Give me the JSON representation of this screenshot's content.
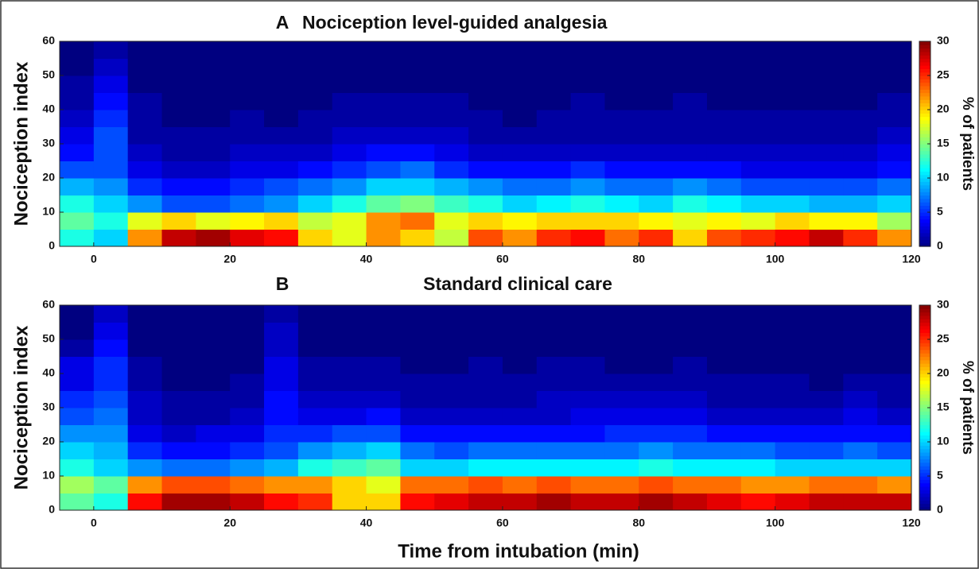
{
  "chart_data": [
    {
      "type": "heatmap",
      "panel_label": "A",
      "title": "Nociception level-guided analgesia",
      "y_label": "Nociception index",
      "colormap": "jet",
      "x_bins": [
        -5,
        0,
        5,
        10,
        15,
        20,
        25,
        30,
        35,
        40,
        45,
        50,
        55,
        60,
        65,
        70,
        75,
        80,
        85,
        90,
        95,
        100,
        105,
        110,
        115,
        120
      ],
      "y_bins": [
        0,
        5,
        10,
        15,
        20,
        25,
        30,
        35,
        40,
        45,
        50,
        55,
        60
      ],
      "values": [
        [
          12,
          10,
          22,
          28,
          29,
          27,
          26,
          20,
          18,
          22,
          20,
          17,
          24,
          22,
          25,
          26,
          23,
          25,
          20,
          24,
          25,
          26,
          28,
          25,
          22
        ],
        [
          14,
          12,
          18,
          20,
          18,
          19,
          20,
          17,
          18,
          22,
          23,
          18,
          20,
          19,
          20,
          20,
          20,
          19,
          18,
          19,
          18,
          20,
          19,
          19,
          16
        ],
        [
          12,
          10,
          8,
          6,
          6,
          7,
          8,
          10,
          12,
          14,
          15,
          13,
          12,
          10,
          11,
          12,
          11,
          10,
          12,
          11,
          10,
          10,
          9,
          9,
          10
        ],
        [
          9,
          8,
          5,
          4,
          4,
          5,
          6,
          7,
          8,
          10,
          10,
          9,
          8,
          7,
          7,
          8,
          7,
          7,
          8,
          7,
          6,
          6,
          6,
          6,
          7
        ],
        [
          6,
          6,
          3,
          2,
          2,
          3,
          3,
          4,
          5,
          6,
          7,
          5,
          4,
          4,
          4,
          5,
          4,
          4,
          4,
          4,
          3,
          3,
          3,
          3,
          4
        ],
        [
          4,
          6,
          2,
          1,
          1,
          2,
          2,
          2,
          3,
          4,
          4,
          3,
          2,
          2,
          2,
          2,
          2,
          2,
          2,
          2,
          2,
          2,
          2,
          2,
          3
        ],
        [
          3,
          6,
          1,
          1,
          1,
          1,
          1,
          1,
          2,
          2,
          2,
          2,
          1,
          1,
          1,
          1,
          1,
          1,
          1,
          1,
          1,
          1,
          1,
          1,
          2
        ],
        [
          2,
          5,
          1,
          0,
          0,
          1,
          0,
          1,
          1,
          1,
          1,
          1,
          1,
          0,
          1,
          1,
          1,
          1,
          1,
          1,
          1,
          1,
          1,
          1,
          1
        ],
        [
          1,
          4,
          1,
          0,
          0,
          0,
          0,
          0,
          1,
          1,
          1,
          1,
          0,
          0,
          0,
          1,
          0,
          0,
          1,
          0,
          0,
          0,
          0,
          0,
          1
        ],
        [
          1,
          3,
          0,
          0,
          0,
          0,
          0,
          0,
          0,
          0,
          0,
          0,
          0,
          0,
          0,
          0,
          0,
          0,
          0,
          0,
          0,
          0,
          0,
          0,
          0
        ],
        [
          0,
          2,
          0,
          0,
          0,
          0,
          0,
          0,
          0,
          0,
          0,
          0,
          0,
          0,
          0,
          0,
          0,
          0,
          0,
          0,
          0,
          0,
          0,
          0,
          0
        ],
        [
          0,
          1,
          0,
          0,
          0,
          0,
          0,
          0,
          0,
          0,
          0,
          0,
          0,
          0,
          0,
          0,
          0,
          0,
          0,
          0,
          0,
          0,
          0,
          0,
          0
        ]
      ],
      "xlim": [
        -5,
        120
      ],
      "xticks": [
        0,
        20,
        40,
        60,
        80,
        100,
        120
      ],
      "ylim": [
        0,
        60
      ],
      "yticks": [
        0,
        10,
        20,
        30,
        40,
        50,
        60
      ],
      "colorbar_label": "% of patients",
      "clim": [
        0,
        30
      ],
      "cticks": [
        0,
        5,
        10,
        15,
        20,
        25,
        30
      ]
    },
    {
      "type": "heatmap",
      "panel_label": "B",
      "title": "Standard clinical care",
      "y_label": "Nociception index",
      "x_label": "Time from intubation (min)",
      "colormap": "jet",
      "x_bins": [
        -5,
        0,
        5,
        10,
        15,
        20,
        25,
        30,
        35,
        40,
        45,
        50,
        55,
        60,
        65,
        70,
        75,
        80,
        85,
        90,
        95,
        100,
        105,
        110,
        115,
        120
      ],
      "y_bins": [
        0,
        5,
        10,
        15,
        20,
        25,
        30,
        35,
        40,
        45,
        50,
        55,
        60
      ],
      "values": [
        [
          14,
          12,
          26,
          29,
          29,
          28,
          26,
          25,
          20,
          20,
          26,
          27,
          28,
          28,
          29,
          28,
          28,
          29,
          28,
          27,
          26,
          27,
          28,
          28,
          28
        ],
        [
          16,
          14,
          22,
          24,
          24,
          23,
          22,
          22,
          20,
          18,
          23,
          23,
          24,
          23,
          24,
          23,
          23,
          24,
          23,
          23,
          22,
          22,
          23,
          23,
          22
        ],
        [
          12,
          10,
          8,
          7,
          7,
          8,
          9,
          12,
          13,
          14,
          10,
          10,
          11,
          11,
          11,
          11,
          11,
          12,
          11,
          11,
          11,
          10,
          10,
          10,
          10
        ],
        [
          10,
          9,
          5,
          4,
          4,
          5,
          6,
          8,
          9,
          10,
          7,
          6,
          7,
          7,
          7,
          7,
          7,
          8,
          7,
          7,
          7,
          6,
          6,
          7,
          6
        ],
        [
          8,
          8,
          3,
          2,
          3,
          3,
          5,
          5,
          6,
          6,
          4,
          4,
          4,
          4,
          4,
          4,
          5,
          5,
          5,
          4,
          4,
          4,
          4,
          4,
          4
        ],
        [
          6,
          7,
          2,
          1,
          1,
          2,
          4,
          3,
          3,
          4,
          2,
          2,
          2,
          2,
          2,
          3,
          3,
          3,
          3,
          2,
          2,
          2,
          2,
          3,
          2
        ],
        [
          5,
          6,
          2,
          1,
          1,
          1,
          4,
          2,
          2,
          2,
          1,
          1,
          1,
          1,
          2,
          2,
          2,
          2,
          2,
          1,
          1,
          1,
          1,
          2,
          1
        ],
        [
          3,
          5,
          1,
          0,
          0,
          1,
          3,
          1,
          1,
          1,
          1,
          1,
          1,
          1,
          1,
          1,
          1,
          1,
          1,
          1,
          1,
          1,
          0,
          1,
          1
        ],
        [
          3,
          5,
          1,
          0,
          0,
          0,
          3,
          1,
          1,
          1,
          0,
          0,
          1,
          0,
          1,
          1,
          0,
          0,
          1,
          0,
          0,
          0,
          0,
          0,
          0
        ],
        [
          1,
          4,
          0,
          0,
          0,
          0,
          2,
          0,
          0,
          0,
          0,
          0,
          0,
          0,
          0,
          0,
          0,
          0,
          0,
          0,
          0,
          0,
          0,
          0,
          0
        ],
        [
          0,
          3,
          0,
          0,
          0,
          0,
          2,
          0,
          0,
          0,
          0,
          0,
          0,
          0,
          0,
          0,
          0,
          0,
          0,
          0,
          0,
          0,
          0,
          0,
          0
        ],
        [
          0,
          2,
          0,
          0,
          0,
          0,
          1,
          0,
          0,
          0,
          0,
          0,
          0,
          0,
          0,
          0,
          0,
          0,
          0,
          0,
          0,
          0,
          0,
          0,
          0
        ]
      ],
      "xlim": [
        -5,
        120
      ],
      "xticks": [
        0,
        20,
        40,
        60,
        80,
        100,
        120
      ],
      "ylim": [
        0,
        60
      ],
      "yticks": [
        0,
        10,
        20,
        30,
        40,
        50,
        60
      ],
      "colorbar_label": "% of patients",
      "clim": [
        0,
        30
      ],
      "cticks": [
        0,
        5,
        10,
        15,
        20,
        25,
        30
      ]
    }
  ]
}
